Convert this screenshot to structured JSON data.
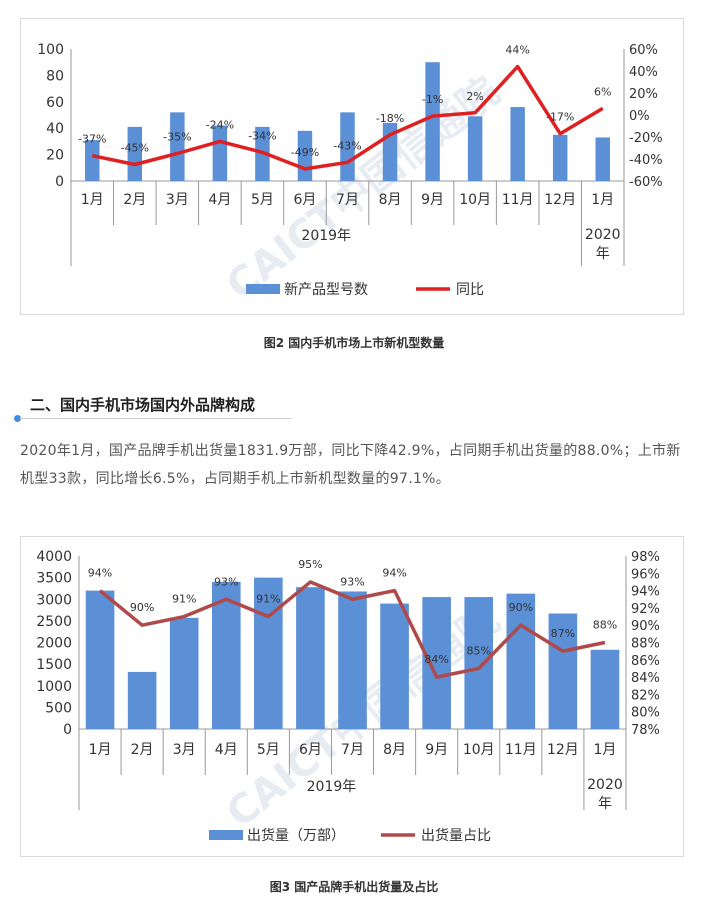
{
  "figure2": {
    "caption": "图2   国内手机市场上市新机型数量",
    "watermark": "CAICT中国信通院"
  },
  "section": {
    "title": "二、国内手机市场国内外品牌构成"
  },
  "paragraph": "2020年1月，国产品牌手机出货量1831.9万部，同比下降42.9%，占同期手机出货量的88.0%；上市新机型33款，同比增长6.5%，占同期手机上市新机型数量的97.1%。",
  "figure3": {
    "caption": "图3   国产品牌手机出货量及占比",
    "watermark": "CAICT中国信通院"
  },
  "colors": {
    "bar": "#5b8fd6",
    "line1": "#e02020",
    "line2": "#b04a4a",
    "section_dot": "#3a8ee6"
  },
  "chart_data": [
    {
      "type": "bar",
      "categories": [
        "1月",
        "2月",
        "3月",
        "4月",
        "5月",
        "6月",
        "7月",
        "8月",
        "9月",
        "10月",
        "11月",
        "12月",
        "1月"
      ],
      "group_labels": [
        "2019年",
        "2020年"
      ],
      "series": [
        {
          "name": "新产品型号数",
          "type": "bar",
          "axis": "left",
          "values": [
            31,
            41,
            52,
            42,
            41,
            38,
            52,
            44,
            90,
            49,
            56,
            35,
            33
          ]
        },
        {
          "name": "同比",
          "type": "line",
          "axis": "right",
          "values": [
            -37,
            -45,
            -35,
            -24,
            -34,
            -49,
            -43,
            -18,
            -1,
            2,
            44,
            -17,
            6
          ],
          "labels": [
            "-37%",
            "-45%",
            "-35%",
            "-24%",
            "-34%",
            "-49%",
            "-43%",
            "-18%",
            "-1%",
            "2%",
            "44%",
            "-17%",
            "6%"
          ]
        }
      ],
      "ylim": [
        0,
        100
      ],
      "yticks": [
        "0",
        "20",
        "40",
        "60",
        "80",
        "100"
      ],
      "y2lim": [
        -60,
        60
      ],
      "y2ticks": [
        "-60%",
        "-40%",
        "-20%",
        "0%",
        "20%",
        "40%",
        "60%"
      ],
      "legend_position": "bottom"
    },
    {
      "type": "bar",
      "categories": [
        "1月",
        "2月",
        "3月",
        "4月",
        "5月",
        "6月",
        "7月",
        "8月",
        "9月",
        "10月",
        "11月",
        "12月",
        "1月"
      ],
      "group_labels": [
        "2019年",
        "2020年"
      ],
      "series": [
        {
          "name": "出货量（万部）",
          "type": "bar",
          "axis": "left",
          "values": [
            3200,
            1320,
            2570,
            3400,
            3500,
            3280,
            3180,
            2900,
            3050,
            3050,
            3130,
            2670,
            1832
          ]
        },
        {
          "name": "出货量占比",
          "type": "line",
          "axis": "right",
          "values": [
            94,
            90,
            91,
            93,
            91,
            95,
            93,
            94,
            84,
            85,
            90,
            87,
            88
          ],
          "labels": [
            "94%",
            "90%",
            "91%",
            "93%",
            "91%",
            "95%",
            "93%",
            "94%",
            "84%",
            "85%",
            "90%",
            "87%",
            "88%"
          ]
        }
      ],
      "ylim": [
        0,
        4000
      ],
      "yticks": [
        "0",
        "500",
        "1000",
        "1500",
        "2000",
        "2500",
        "3000",
        "3500",
        "4000"
      ],
      "y2lim": [
        78,
        98
      ],
      "y2ticks": [
        "78%",
        "80%",
        "82%",
        "84%",
        "86%",
        "88%",
        "90%",
        "92%",
        "94%",
        "96%",
        "98%"
      ],
      "legend_position": "bottom"
    }
  ]
}
